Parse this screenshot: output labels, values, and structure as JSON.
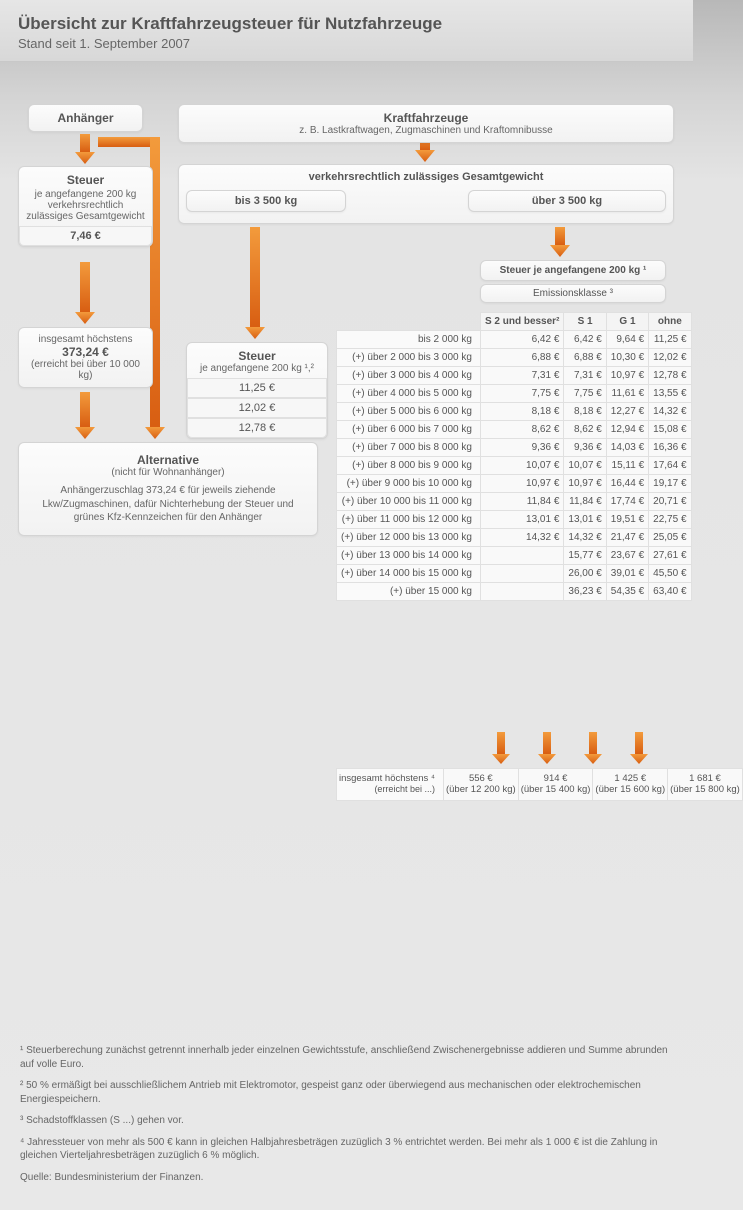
{
  "colors": {
    "arrow_top": "#f08a2a",
    "arrow_bottom": "#d55a10",
    "box_bg_top": "#fcfcfc",
    "box_bg_bottom": "#f2f2f2",
    "text": "#555555"
  },
  "header": {
    "title": "Übersicht zur Kraftfahrzeugsteuer für Nutzfahrzeuge",
    "subtitle": "Stand seit 1. September 2007"
  },
  "trailer": {
    "heading": "Anhänger",
    "tax_box": {
      "main": "Steuer",
      "sub": "je angefangene 200 kg verkehrsrechtlich zulässiges Gesamtgewicht",
      "price": "7,46 €"
    },
    "max_box": {
      "line1": "insgesamt höchstens",
      "amount": "373,24 €",
      "note": "(erreicht bei über 10 000 kg)"
    },
    "alt_box": {
      "title": "Alternative",
      "sub": "(nicht für Wohnanhänger)",
      "body": "Anhängerzuschlag 373,24 € für jeweils ziehende Lkw/Zugmaschinen, dafür Nichterhebung der Steuer und grünes Kfz-Kennzeichen für den Anhänger"
    }
  },
  "vehicles": {
    "heading": "Kraftfahrzeuge",
    "sub": "z. B. Lastkraftwagen, Zugmaschinen und Kraftomnibusse",
    "weight_label": "verkehrsrechtlich zulässiges Gesamtgewicht",
    "light": {
      "label": "bis 3 500 kg",
      "tax_label": "Steuer",
      "tax_sub": "je angefangene 200 kg ¹,²",
      "prices": [
        "11,25 €",
        "12,02 €",
        "12,78 €"
      ]
    },
    "heavy": {
      "label": "über 3 500 kg",
      "tax_header": "Steuer je angefangene 200 kg ¹",
      "emission_header": "Emissionsklasse ³",
      "columns": [
        "S 2 und besser²",
        "S 1",
        "G 1",
        "ohne"
      ],
      "rows": [
        {
          "label": "bis 2 000 kg",
          "v": [
            "6,42 €",
            "6,42 €",
            "9,64 €",
            "11,25 €"
          ]
        },
        {
          "label": "(+) über 2 000 bis 3 000 kg",
          "v": [
            "6,88 €",
            "6,88 €",
            "10,30 €",
            "12,02 €"
          ]
        },
        {
          "label": "(+) über 3 000 bis 4 000 kg",
          "v": [
            "7,31 €",
            "7,31 €",
            "10,97 €",
            "12,78 €"
          ]
        },
        {
          "label": "(+) über 4 000 bis 5 000 kg",
          "v": [
            "7,75 €",
            "7,75 €",
            "11,61 €",
            "13,55 €"
          ]
        },
        {
          "label": "(+) über 5 000 bis 6 000 kg",
          "v": [
            "8,18 €",
            "8,18 €",
            "12,27 €",
            "14,32 €"
          ]
        },
        {
          "label": "(+) über 6 000 bis 7 000 kg",
          "v": [
            "8,62 €",
            "8,62 €",
            "12,94 €",
            "15,08 €"
          ]
        },
        {
          "label": "(+) über 7 000 bis 8 000 kg",
          "v": [
            "9,36 €",
            "9,36 €",
            "14,03 €",
            "16,36 €"
          ]
        },
        {
          "label": "(+) über 8 000 bis 9 000 kg",
          "v": [
            "10,07 €",
            "10,07 €",
            "15,11 €",
            "17,64 €"
          ]
        },
        {
          "label": "(+) über 9 000 bis 10 000 kg",
          "v": [
            "10,97 €",
            "10,97 €",
            "16,44 €",
            "19,17 €"
          ]
        },
        {
          "label": "(+) über 10 000 bis 11 000 kg",
          "v": [
            "11,84 €",
            "11,84 €",
            "17,74 €",
            "20,71 €"
          ]
        },
        {
          "label": "(+) über 11 000 bis 12 000 kg",
          "v": [
            "13,01 €",
            "13,01 €",
            "19,51 €",
            "22,75 €"
          ]
        },
        {
          "label": "(+) über 12 000 bis 13 000 kg",
          "v": [
            "14,32 €",
            "14,32 €",
            "21,47 €",
            "25,05 €"
          ]
        },
        {
          "label": "(+) über 13 000 bis 14 000 kg",
          "v": [
            "",
            "15,77 €",
            "23,67 €",
            "27,61 €"
          ]
        },
        {
          "label": "(+) über 14 000 bis 15 000 kg",
          "v": [
            "",
            "26,00 €",
            "39,01 €",
            "45,50 €"
          ]
        },
        {
          "label": "(+) über 15 000 kg",
          "v": [
            "",
            "36,23 €",
            "54,35 €",
            "63,40 €"
          ]
        }
      ],
      "max": {
        "label": "insgesamt höchstens ⁴",
        "sub": "(erreicht bei ...)",
        "cells": [
          {
            "amount": "556 €",
            "note": "(über 12 200 kg)"
          },
          {
            "amount": "914 €",
            "note": "(über 15 400 kg)"
          },
          {
            "amount": "1 425 €",
            "note": "(über 15 600 kg)"
          },
          {
            "amount": "1 681 €",
            "note": "(über 15 800 kg)"
          }
        ]
      }
    }
  },
  "footnotes": {
    "n1": "¹ Steuerberechung zunächst getrennt innerhalb jeder einzelnen Gewichtsstufe, anschließend Zwischenergebnisse addieren und Summe abrunden auf volle Euro.",
    "n2": "² 50 % ermäßigt bei ausschließlichem Antrieb mit Elektromotor, gespeist ganz oder überwiegend aus mechanischen oder elektrochemischen Energiespeichern.",
    "n3": "³ Schadstoffklassen (S ...) gehen vor.",
    "n4": "⁴ Jahressteuer von mehr als 500 € kann in gleichen Halbjahresbeträgen zuzüglich 3 % entrichtet werden. Bei mehr als 1 000 € ist die Zahlung in gleichen Vierteljahresbeträgen zuzüglich 6 % möglich.",
    "source": "Quelle: Bundesministerium der Finanzen."
  }
}
